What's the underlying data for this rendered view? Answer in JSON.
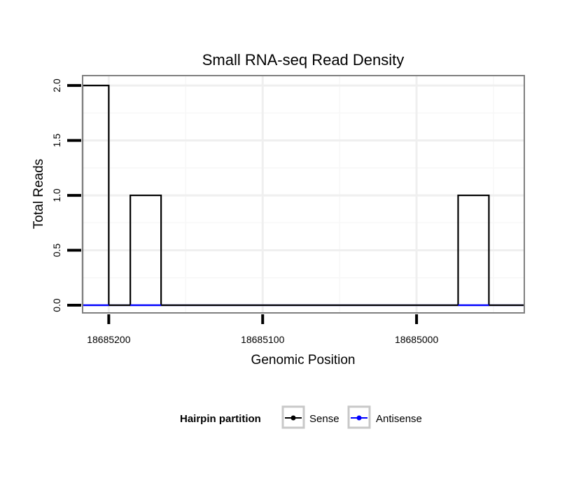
{
  "chart_data": {
    "type": "line",
    "title": "Small RNA-seq Read Density",
    "xlabel": "Genomic Position",
    "ylabel": "Total Reads",
    "x_reversed": true,
    "xlim": [
      18685217,
      18684930
    ],
    "ylim": [
      -0.07,
      2.09
    ],
    "x_ticks": [
      18685200,
      18685100,
      18685000
    ],
    "x_tick_labels": [
      "18685200",
      "18685100",
      "18685000"
    ],
    "y_ticks": [
      0,
      0.5,
      1,
      1.5,
      2
    ],
    "y_tick_labels": [
      "0.0",
      "0.5",
      "1.0",
      "1.5",
      "2.0"
    ],
    "grid": true,
    "legend": {
      "title": "Hairpin partition",
      "position": "bottom",
      "entries": [
        "Sense",
        "Antisense"
      ]
    },
    "series": [
      {
        "name": "Sense",
        "color": "#000000",
        "points": [
          [
            18685217,
            0
          ],
          [
            18685217,
            2
          ],
          [
            18685200,
            2
          ],
          [
            18685200,
            0
          ],
          [
            18685186,
            0
          ],
          [
            18685186,
            1
          ],
          [
            18685166,
            1
          ],
          [
            18685166,
            0
          ],
          [
            18684973,
            0
          ],
          [
            18684973,
            1
          ],
          [
            18684953,
            1
          ],
          [
            18684953,
            0
          ],
          [
            18684930,
            0
          ]
        ]
      },
      {
        "name": "Antisense",
        "color": "#0000ff",
        "points": [
          [
            18685217,
            0
          ],
          [
            18684930,
            0
          ]
        ]
      }
    ]
  }
}
